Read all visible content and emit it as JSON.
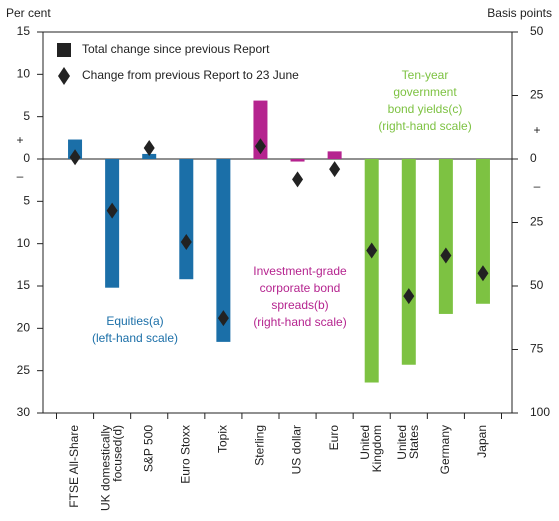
{
  "chart_data": {
    "type": "bar",
    "ylabel": "Per cent",
    "y2label": "Basis points",
    "ylim": [
      -30,
      15
    ],
    "yticks": [
      15,
      10,
      5,
      0,
      {
        "value": -5,
        "label": "5"
      },
      {
        "value": -10,
        "label": "10"
      },
      {
        "value": -15,
        "label": "15"
      },
      {
        "value": -20,
        "label": "20"
      },
      {
        "value": -25,
        "label": "25"
      },
      {
        "value": -30,
        "label": "30"
      }
    ],
    "y2lim": [
      -100,
      50
    ],
    "y2ticks": [
      50,
      25,
      0,
      {
        "value": -25,
        "label": "25"
      },
      {
        "value": -50,
        "label": "50"
      },
      {
        "value": -75,
        "label": "75"
      },
      {
        "value": -100,
        "label": "100"
      }
    ],
    "signs": [
      "+",
      "–"
    ],
    "legend": [
      "Total change since previous Report",
      "Change from previous Report to 23 June"
    ],
    "legend_colors": [
      "#222222",
      "#222222"
    ],
    "groups": [
      {
        "label": [
          "Equities(a)",
          "(left-hand scale)"
        ],
        "axis": "y",
        "color": "#1b6fa8",
        "categories": [
          [
            "FTSE All-Share"
          ],
          [
            "UK domestically",
            "focused(d)"
          ],
          [
            "S&P 500"
          ],
          [
            "Euro Stoxx"
          ],
          [
            "Topix"
          ]
        ],
        "bars": [
          2.3,
          -15.2,
          0.6,
          -14.2,
          -21.6
        ],
        "diamonds": [
          0.2,
          -6.1,
          1.3,
          -9.8,
          -18.8
        ]
      },
      {
        "label": [
          "Investment-grade",
          "corporate bond",
          "spreads(b)",
          "(right-hand scale)"
        ],
        "axis": "y2",
        "color": "#b5248f",
        "categories": [
          [
            "Sterling"
          ],
          [
            "US dollar"
          ],
          [
            "Euro"
          ]
        ],
        "bars": [
          23,
          -1,
          3
        ],
        "diamonds": [
          5,
          -8,
          -4
        ]
      },
      {
        "label": [
          "Ten-year",
          "government",
          "bond yields(c)",
          "(right-hand scale)"
        ],
        "axis": "y2",
        "color": "#7dc242",
        "categories": [
          [
            "United",
            "Kingdom"
          ],
          [
            "United",
            "States"
          ],
          [
            "Germany"
          ],
          [
            "Japan"
          ]
        ],
        "bars": [
          -88,
          -81,
          -61,
          -57
        ],
        "diamonds": [
          -36,
          -54,
          -38,
          -45
        ]
      }
    ]
  }
}
